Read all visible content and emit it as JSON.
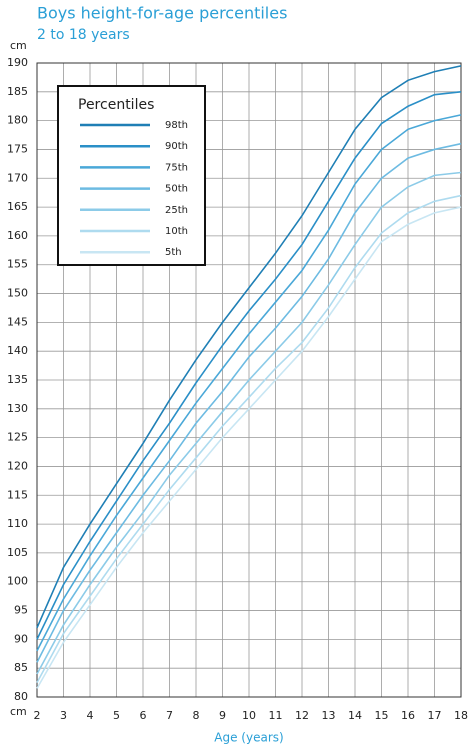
{
  "chart_data": {
    "type": "line",
    "title": "Boys height-for-age percentiles",
    "subtitle": "2 to 18 years",
    "x_label": "Age (years)",
    "y_label": "cm",
    "legend_title": "Percentiles",
    "legend": "upper left",
    "grid": true,
    "x": [
      2,
      3,
      4,
      5,
      6,
      7,
      8,
      9,
      10,
      11,
      12,
      13,
      14,
      15,
      16,
      17,
      18
    ],
    "xlim": [
      2,
      18
    ],
    "xticks": [
      2,
      3,
      4,
      5,
      6,
      7,
      8,
      9,
      10,
      11,
      12,
      13,
      14,
      15,
      16,
      17,
      18
    ],
    "ylim": [
      80,
      190
    ],
    "yticks": [
      80,
      85,
      90,
      95,
      100,
      105,
      110,
      115,
      120,
      125,
      130,
      135,
      140,
      145,
      150,
      155,
      160,
      165,
      170,
      175,
      180,
      185,
      190
    ],
    "series": [
      {
        "name": "98th",
        "color": "#1f7fb5",
        "values": [
          92,
          102.5,
          110,
          117,
          124,
          131.5,
          138.5,
          145,
          151,
          157,
          163.5,
          171,
          178.5,
          184,
          187,
          188.5,
          189.5
        ]
      },
      {
        "name": "90th",
        "color": "#2a8fc7",
        "values": [
          90,
          99.5,
          107,
          114,
          121,
          127.5,
          134.5,
          141,
          147,
          152.5,
          158.5,
          166,
          173.5,
          179.5,
          182.5,
          184.5,
          185
        ]
      },
      {
        "name": "75th",
        "color": "#4aa8d8",
        "values": [
          88,
          97,
          104.5,
          111.5,
          118,
          124.5,
          131,
          137,
          143,
          148.5,
          154,
          161,
          169,
          175,
          178.5,
          180,
          181
        ]
      },
      {
        "name": "50th",
        "color": "#6dbbe2",
        "values": [
          86,
          95,
          102,
          108.5,
          115,
          121,
          127.5,
          133,
          139,
          144,
          149.5,
          156,
          164,
          170,
          173.5,
          175,
          176
        ]
      },
      {
        "name": "25th",
        "color": "#8ccbe8",
        "values": [
          84,
          92.5,
          99.5,
          106,
          112,
          118.5,
          124,
          129.5,
          135,
          140,
          145,
          151.5,
          158.5,
          165,
          168.5,
          170.5,
          171
        ]
      },
      {
        "name": "10th",
        "color": "#aedbef",
        "values": [
          82.5,
          91,
          97.5,
          104,
          110,
          116,
          121.5,
          127,
          132,
          137,
          141.5,
          147.5,
          154.5,
          160.5,
          164,
          166,
          167
        ]
      },
      {
        "name": "5th",
        "color": "#c8e6f3",
        "values": [
          81.5,
          89.5,
          96,
          102.5,
          108.5,
          114,
          119.5,
          125,
          130,
          135,
          140,
          146,
          152.5,
          159,
          162,
          164,
          165
        ]
      }
    ]
  }
}
